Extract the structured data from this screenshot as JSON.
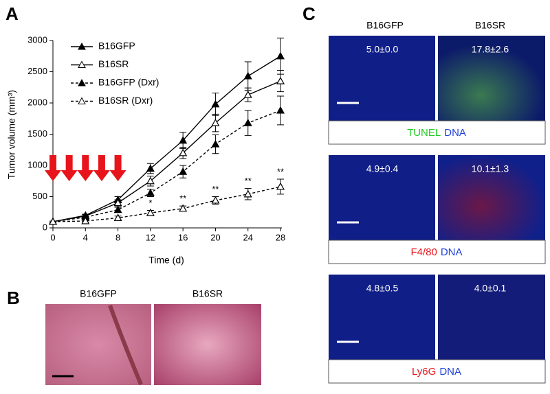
{
  "chart_data": {
    "type": "line",
    "panel": "A",
    "xlabel": "Time (d)",
    "ylabel": "Tumor volume (mm³)",
    "x": [
      0,
      4,
      8,
      12,
      16,
      20,
      24,
      28
    ],
    "xlim": [
      0,
      28
    ],
    "xticks": [
      0,
      4,
      8,
      12,
      16,
      20,
      24,
      28
    ],
    "ylim": [
      0,
      3000
    ],
    "yticks": [
      0,
      500,
      1000,
      1500,
      2000,
      2500,
      3000
    ],
    "series": [
      {
        "name": "B16GFP",
        "color": "#000000",
        "dashed": false,
        "marker": "filled",
        "values": [
          100,
          200,
          450,
          950,
          1400,
          1980,
          2430,
          2750
        ],
        "errors": [
          10,
          20,
          50,
          80,
          130,
          180,
          230,
          290
        ]
      },
      {
        "name": "B16SR",
        "color": "#000000",
        "dashed": false,
        "marker": "open",
        "values": [
          100,
          190,
          400,
          750,
          1200,
          1680,
          2130,
          2350
        ],
        "errors": [
          10,
          20,
          50,
          80,
          90,
          140,
          110,
          170
        ]
      },
      {
        "name": "B16GFP (Dxr)",
        "color": "#000000",
        "dashed": true,
        "marker": "filled",
        "values": [
          100,
          170,
          290,
          560,
          900,
          1340,
          1680,
          1880
        ],
        "errors": [
          10,
          20,
          40,
          60,
          100,
          150,
          200,
          230
        ]
      },
      {
        "name": "B16SR (Dxr)",
        "color": "#000000",
        "dashed": true,
        "marker": "open",
        "values": [
          100,
          110,
          160,
          240,
          310,
          440,
          540,
          660
        ],
        "errors": [
          10,
          20,
          30,
          40,
          40,
          60,
          90,
          120
        ]
      }
    ],
    "annotations": [
      {
        "x": 12,
        "text": "*"
      },
      {
        "x": 16,
        "text": "**"
      },
      {
        "x": 20,
        "text": "**"
      },
      {
        "x": 24,
        "text": "**"
      },
      {
        "x": 28,
        "text": "**"
      }
    ],
    "arrows_x": [
      0,
      2,
      4,
      6,
      8
    ],
    "arrow_color": "#e8141b"
  },
  "panel_b": {
    "label": "B",
    "columns": [
      "B16GFP",
      "B16SR"
    ]
  },
  "panel_c": {
    "label": "C",
    "columns": [
      "B16GFP",
      "B16SR"
    ],
    "rows": [
      {
        "values": [
          "5.0±0.0",
          "17.8±2.6"
        ],
        "stain": "TUNEL",
        "stain_color": "#22cc22",
        "counter": "DNA",
        "counter_color": "#1f3fd8"
      },
      {
        "values": [
          "4.9±0.4",
          "10.1±1.3"
        ],
        "stain": "F4/80",
        "stain_color": "#e8141b",
        "counter": "DNA",
        "counter_color": "#1f3fd8"
      },
      {
        "values": [
          "4.8±0.5",
          "4.0±0.1"
        ],
        "stain": "Ly6G",
        "stain_color": "#e8141b",
        "counter": "DNA",
        "counter_color": "#1f3fd8"
      }
    ]
  }
}
